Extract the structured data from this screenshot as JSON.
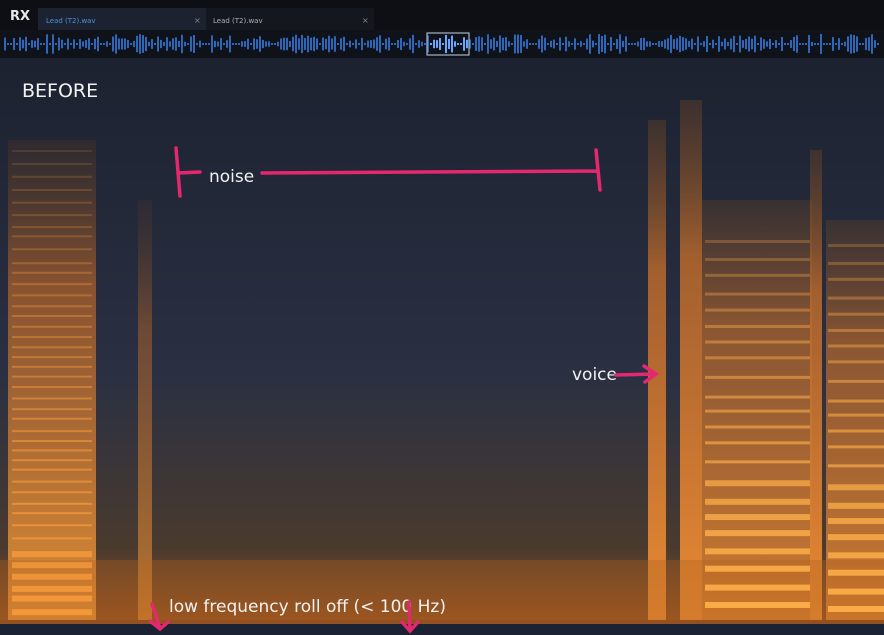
{
  "app": {
    "logo": "RX",
    "tabs": [
      "Lead (T2).wav",
      "Lead (T2).wav"
    ]
  },
  "annotations": {
    "title": "BEFORE",
    "noise": "noise",
    "voice": "voice",
    "roll_off": "low frequency roll off (< 100 Hz)"
  }
}
